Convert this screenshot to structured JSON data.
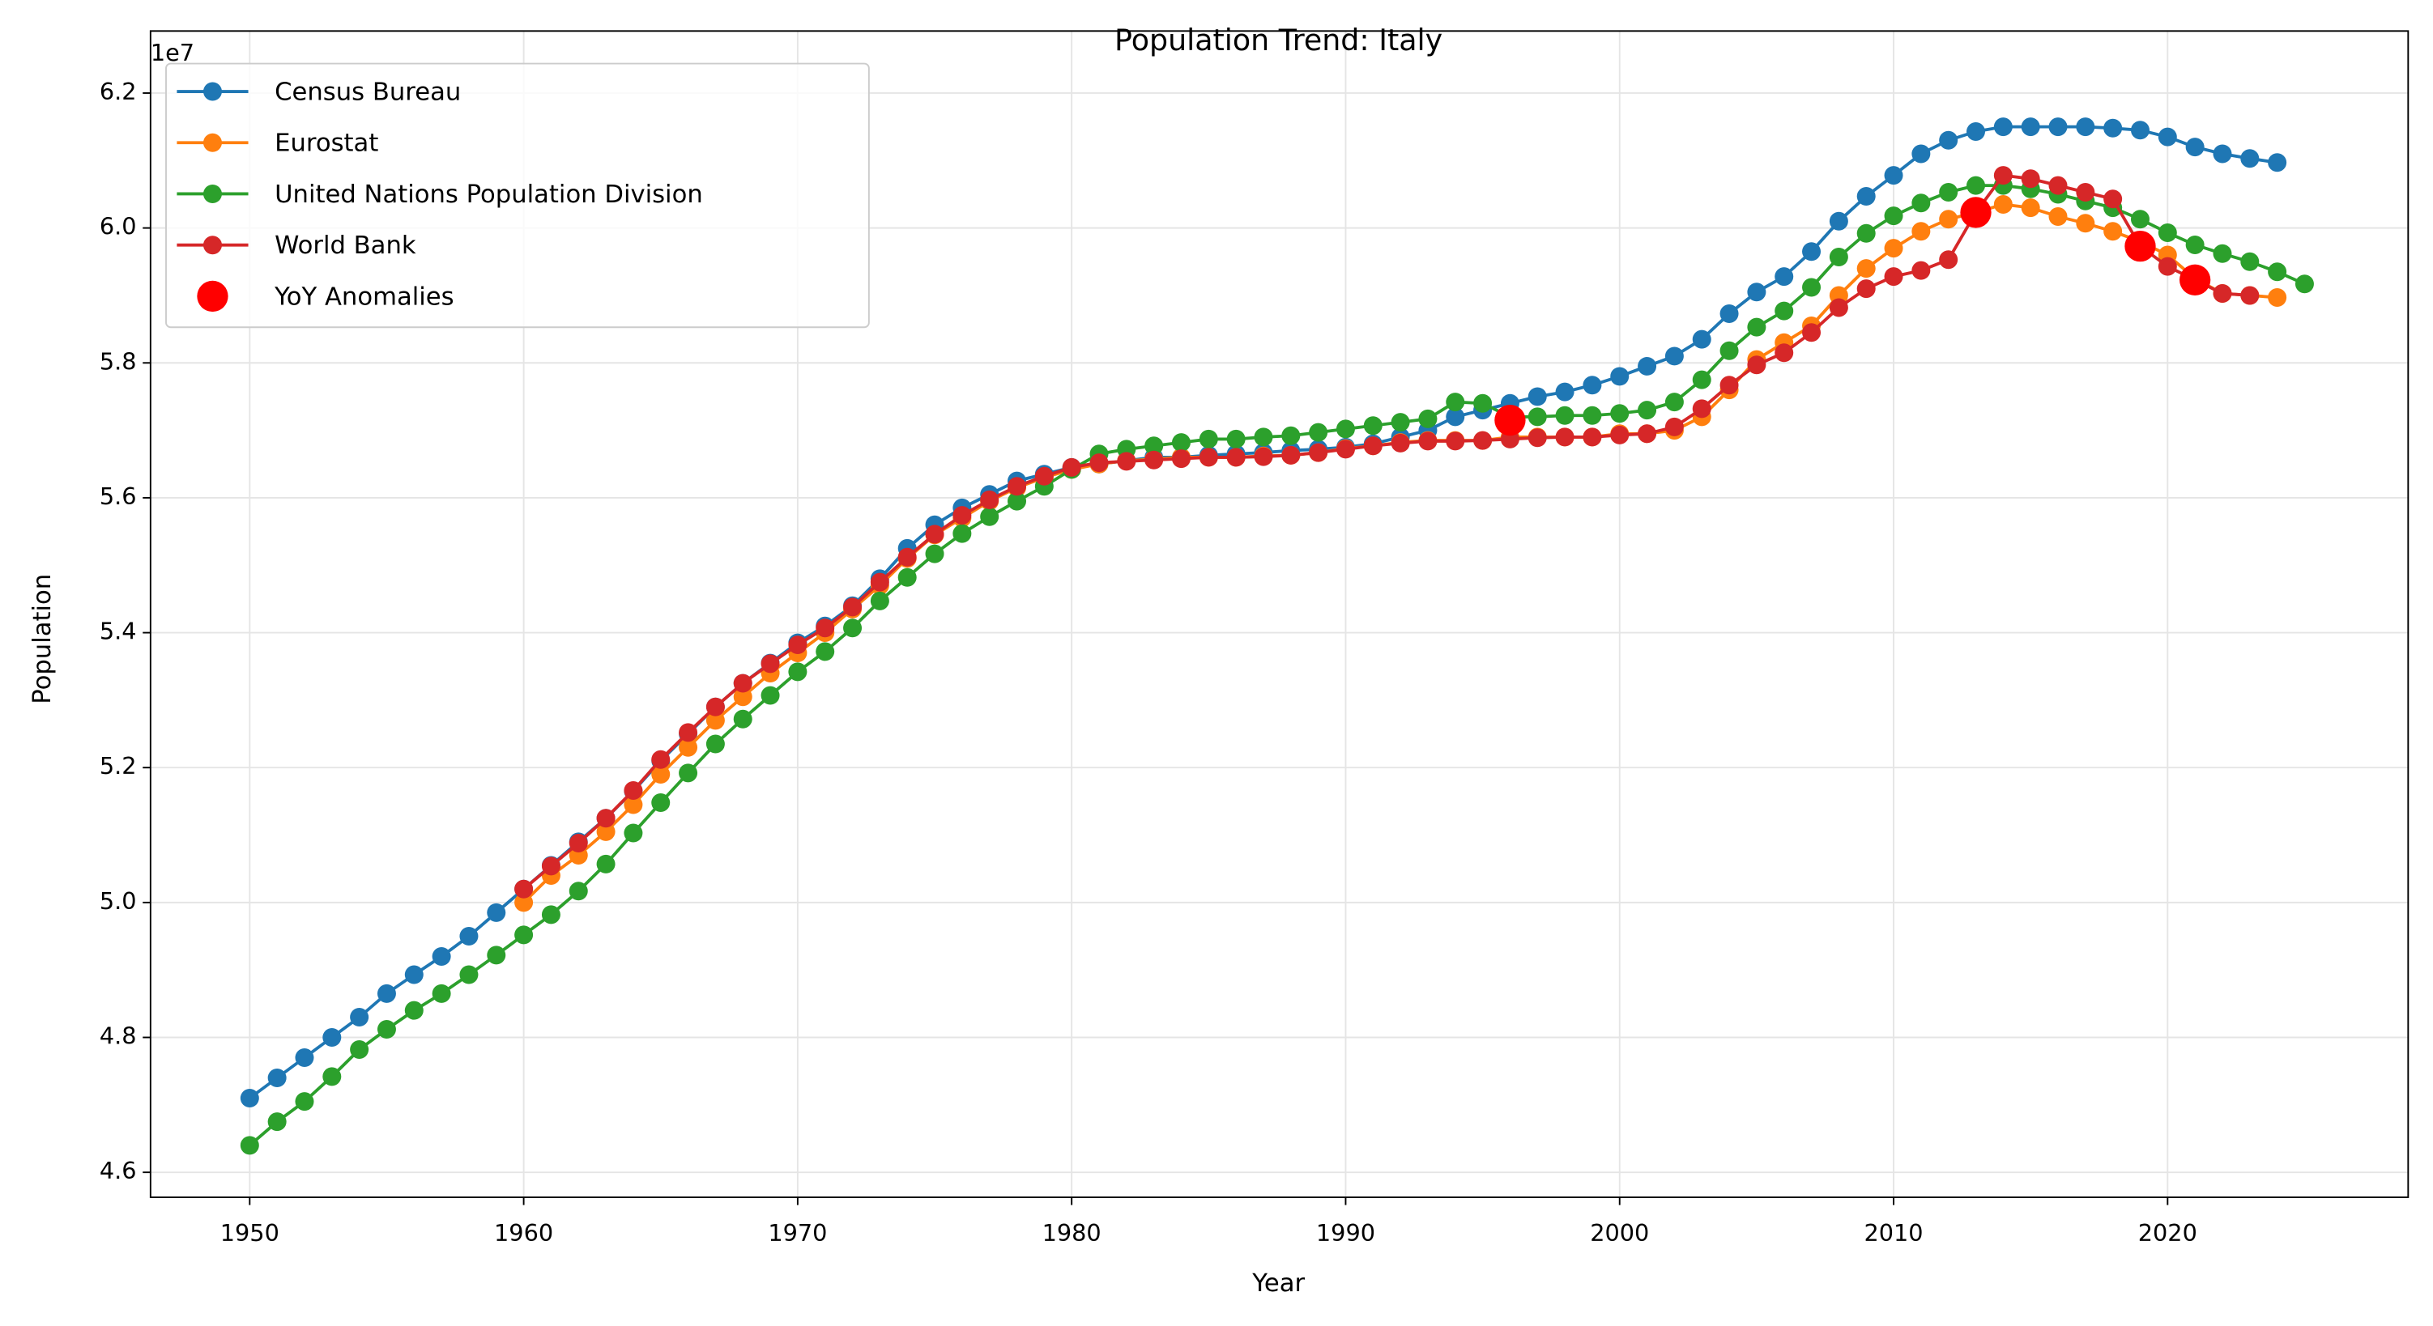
{
  "chart_data": {
    "type": "line",
    "title": "Population Trend: Italy",
    "xlabel": "Year",
    "ylabel": "Population",
    "y_offset_label": "1e7",
    "xlim": [
      1946.38,
      2028.78
    ],
    "xticks": [
      1950,
      1960,
      1970,
      1980,
      1990,
      2000,
      2010,
      2020
    ],
    "ylim": [
      4.563,
      6.292
    ],
    "yticks": [
      4.6,
      4.8,
      {
        "value": 5.0,
        "label": "5.0"
      },
      5.2,
      5.4,
      5.6,
      5.8,
      {
        "value": 6.0,
        "label": "6.0"
      },
      6.2
    ],
    "grid": true,
    "legend": "upper left",
    "series": [
      {
        "name": "Census Bureau",
        "color": "#1f77b4",
        "style": "line",
        "x": [
          1950,
          1951,
          1952,
          1953,
          1954,
          1955,
          1956,
          1957,
          1958,
          1959,
          1960,
          1961,
          1962,
          1963,
          1964,
          1965,
          1966,
          1967,
          1968,
          1969,
          1970,
          1971,
          1972,
          1973,
          1974,
          1975,
          1976,
          1977,
          1978,
          1979,
          1980,
          1981,
          1982,
          1983,
          1984,
          1985,
          1986,
          1987,
          1988,
          1989,
          1990,
          1991,
          1992,
          1993,
          1994,
          1995,
          1996,
          1997,
          1998,
          1999,
          2000,
          2001,
          2002,
          2003,
          2004,
          2005,
          2006,
          2007,
          2008,
          2009,
          2010,
          2011,
          2012,
          2013,
          2014,
          2015,
          2016,
          2017,
          2018,
          2019,
          2020,
          2021,
          2022,
          2023,
          2024
        ],
        "values": [
          4.71,
          4.74,
          4.77,
          4.8,
          4.83,
          4.865,
          4.893,
          4.92,
          4.95,
          4.985,
          5.02,
          5.055,
          5.09,
          5.125,
          5.165,
          5.21,
          5.25,
          5.29,
          5.325,
          5.355,
          5.385,
          5.41,
          5.44,
          5.48,
          5.525,
          5.56,
          5.585,
          5.605,
          5.625,
          5.635,
          5.645,
          5.65,
          5.655,
          5.66,
          5.66,
          5.663,
          5.665,
          5.667,
          5.67,
          5.672,
          5.675,
          5.68,
          5.69,
          5.7,
          5.72,
          5.73,
          5.74,
          5.75,
          5.757,
          5.767,
          5.78,
          5.795,
          5.81,
          5.835,
          5.873,
          5.905,
          5.928,
          5.965,
          6.01,
          6.047,
          6.078,
          6.11,
          6.13,
          6.143,
          6.15,
          6.15,
          6.15,
          6.15,
          6.148,
          6.145,
          6.135,
          6.12,
          6.11,
          6.103,
          6.097
        ]
      },
      {
        "name": "Eurostat",
        "color": "#ff7f0e",
        "style": "line",
        "x": [
          1960,
          1961,
          1962,
          1963,
          1964,
          1965,
          1966,
          1967,
          1968,
          1969,
          1970,
          1971,
          1972,
          1973,
          1974,
          1975,
          1976,
          1977,
          1978,
          1979,
          1980,
          1981,
          1982,
          1983,
          1984,
          1985,
          1986,
          1987,
          1988,
          1989,
          1990,
          1991,
          1992,
          1993,
          1994,
          1995,
          1996,
          1997,
          1998,
          1999,
          2000,
          2001,
          2002,
          2003,
          2004,
          2005,
          2006,
          2007,
          2008,
          2009,
          2010,
          2011,
          2012,
          2013,
          2014,
          2015,
          2016,
          2017,
          2018,
          2019,
          2020,
          2021,
          2022,
          2023,
          2024
        ],
        "values": [
          5.0,
          5.04,
          5.07,
          5.105,
          5.145,
          5.19,
          5.23,
          5.27,
          5.305,
          5.34,
          5.37,
          5.4,
          5.435,
          5.47,
          5.51,
          5.545,
          5.57,
          5.595,
          5.615,
          5.63,
          5.642,
          5.65,
          5.655,
          5.657,
          5.66,
          5.66,
          5.66,
          5.662,
          5.663,
          5.667,
          5.673,
          5.677,
          5.682,
          5.685,
          5.685,
          5.685,
          5.69,
          5.69,
          5.69,
          5.69,
          5.695,
          5.695,
          5.7,
          5.72,
          5.76,
          5.805,
          5.83,
          5.855,
          5.9,
          5.94,
          5.97,
          5.995,
          6.013,
          6.023,
          6.035,
          6.03,
          6.017,
          6.007,
          5.995,
          5.98,
          5.96,
          5.925,
          5.903,
          5.9,
          5.897
        ]
      },
      {
        "name": "United Nations Population Division",
        "color": "#2ca02c",
        "style": "line",
        "x": [
          1950,
          1951,
          1952,
          1953,
          1954,
          1955,
          1956,
          1957,
          1958,
          1959,
          1960,
          1961,
          1962,
          1963,
          1964,
          1965,
          1966,
          1967,
          1968,
          1969,
          1970,
          1971,
          1972,
          1973,
          1974,
          1975,
          1976,
          1977,
          1978,
          1979,
          1980,
          1981,
          1982,
          1983,
          1984,
          1985,
          1986,
          1987,
          1988,
          1989,
          1990,
          1991,
          1992,
          1993,
          1994,
          1995,
          1996,
          1997,
          1998,
          1999,
          2000,
          2001,
          2002,
          2003,
          2004,
          2005,
          2006,
          2007,
          2008,
          2009,
          2010,
          2011,
          2012,
          2013,
          2014,
          2015,
          2016,
          2017,
          2018,
          2019,
          2020,
          2021,
          2022,
          2023,
          2024,
          2025
        ],
        "values": [
          4.64,
          4.675,
          4.705,
          4.742,
          4.782,
          4.812,
          4.84,
          4.865,
          4.893,
          4.922,
          4.952,
          4.982,
          5.017,
          5.057,
          5.103,
          5.148,
          5.192,
          5.235,
          5.272,
          5.307,
          5.342,
          5.372,
          5.407,
          5.447,
          5.482,
          5.517,
          5.547,
          5.572,
          5.595,
          5.617,
          5.642,
          5.665,
          5.672,
          5.677,
          5.682,
          5.687,
          5.687,
          5.69,
          5.692,
          5.697,
          5.702,
          5.707,
          5.712,
          5.717,
          5.742,
          5.74,
          5.72,
          5.72,
          5.722,
          5.722,
          5.725,
          5.73,
          5.742,
          5.775,
          5.818,
          5.853,
          5.877,
          5.912,
          5.957,
          5.992,
          6.018,
          6.037,
          6.053,
          6.063,
          6.063,
          6.058,
          6.05,
          6.04,
          6.03,
          6.013,
          5.993,
          5.975,
          5.962,
          5.95,
          5.935,
          5.917
        ]
      },
      {
        "name": "World Bank",
        "color": "#d62728",
        "style": "line",
        "x": [
          1960,
          1961,
          1962,
          1963,
          1964,
          1965,
          1966,
          1967,
          1968,
          1969,
          1970,
          1971,
          1972,
          1973,
          1974,
          1975,
          1976,
          1977,
          1978,
          1979,
          1980,
          1981,
          1982,
          1983,
          1984,
          1985,
          1986,
          1987,
          1988,
          1989,
          1990,
          1991,
          1992,
          1993,
          1994,
          1995,
          1996,
          1997,
          1998,
          1999,
          2000,
          2001,
          2002,
          2003,
          2004,
          2005,
          2006,
          2007,
          2008,
          2009,
          2010,
          2011,
          2012,
          2013,
          2014,
          2015,
          2016,
          2017,
          2018,
          2019,
          2020,
          2021,
          2022,
          2023
        ],
        "values": [
          5.02,
          5.054,
          5.088,
          5.125,
          5.166,
          5.212,
          5.252,
          5.29,
          5.325,
          5.354,
          5.382,
          5.407,
          5.438,
          5.475,
          5.512,
          5.546,
          5.574,
          5.597,
          5.617,
          5.632,
          5.645,
          5.652,
          5.654,
          5.656,
          5.658,
          5.66,
          5.66,
          5.661,
          5.663,
          5.667,
          5.672,
          5.677,
          5.681,
          5.684,
          5.684,
          5.685,
          5.687,
          5.689,
          5.69,
          5.69,
          5.693,
          5.695,
          5.705,
          5.732,
          5.767,
          5.797,
          5.815,
          5.845,
          5.882,
          5.91,
          5.928,
          5.937,
          5.953,
          6.023,
          6.078,
          6.073,
          6.063,
          6.053,
          6.043,
          5.973,
          5.943,
          5.923,
          5.903,
          5.9
        ]
      },
      {
        "name": "YoY Anomalies",
        "color": "#ff0000",
        "style": "scatter",
        "x": [
          1996,
          2013,
          2019,
          2021
        ],
        "values": [
          5.715,
          6.023,
          5.973,
          5.923
        ]
      }
    ]
  }
}
